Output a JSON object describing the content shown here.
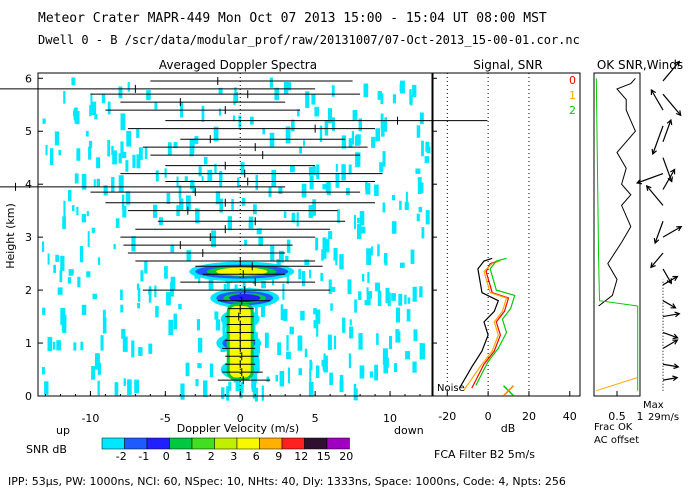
{
  "header": {
    "line1": "Meteor Crater  MAPR-449  Mon Oct 07 2013 15:00 - 15:04 UT 08:00 MST",
    "line2": "Dwell  0 -  B   /scr/data/modular_prof/raw/20131007/07-Oct-2013_15-00-01.cor.nc"
  },
  "footer": {
    "params": "IPP: 53µs, PW: 1000ns, NCI: 60, NSpec: 10, NHts: 40, Dly: 1333ns, Space: 1000ns, Code: 4, Npts: 256",
    "fca": "FCA Filter B2  5m/s"
  },
  "colorbar": {
    "label": "SNR dB",
    "ticks": [
      "-2",
      "-1",
      "0",
      "1",
      "2",
      "3",
      "6",
      "9",
      "12",
      "15",
      "20"
    ],
    "colors": [
      "#00e8ff",
      "#1e5aff",
      "#2020ff",
      "#00c840",
      "#40e020",
      "#c0f000",
      "#f8f800",
      "#ffb000",
      "#ff2020",
      "#301030",
      "#a000c0"
    ]
  },
  "chart_data": [
    {
      "type": "heatmap",
      "title": "Averaged Doppler Spectra",
      "xlabel": "Doppler Velocity (m/s)",
      "ylabel": "Height (km)",
      "xlim": [
        -13.5,
        12.8
      ],
      "ylim": [
        0,
        6.1
      ],
      "xticks": [
        "-10",
        "-5",
        "0",
        "5",
        "10"
      ],
      "yticks": [
        "0",
        "1",
        "2",
        "3",
        "4",
        "5",
        "6"
      ],
      "x_left_label": "up",
      "x_right_label": "down",
      "echo_layers": [
        {
          "height_km": 2.35,
          "vmin": -3.0,
          "vmax": 3.2,
          "peak_color": "#f8f800"
        },
        {
          "height_km": 1.85,
          "vmin": -1.6,
          "vmax": 2.2,
          "peak_color": "#2020ff"
        },
        {
          "height_km": 1.45,
          "vmin": -0.9,
          "vmax": 0.9,
          "peak_color": "#f8f800"
        },
        {
          "height_km": 1.0,
          "vmin": -1.2,
          "vmax": 1.0,
          "peak_color": "#f8f800"
        },
        {
          "height_km": 0.5,
          "vmin": -0.9,
          "vmax": 0.9,
          "peak_color": "#f8f800"
        }
      ],
      "error_bars": [
        {
          "h": 0.3,
          "v": 0.2,
          "lo": -1.5,
          "hi": 2.0
        },
        {
          "h": 0.45,
          "v": 0.1,
          "lo": -1.2,
          "hi": 1.5
        },
        {
          "h": 0.6,
          "v": 0.0,
          "lo": -1.0,
          "hi": 1.0
        },
        {
          "h": 0.75,
          "v": 0.1,
          "lo": -1.0,
          "hi": 1.2
        },
        {
          "h": 0.9,
          "v": 0.0,
          "lo": -1.2,
          "hi": 1.0
        },
        {
          "h": 1.05,
          "v": 0.0,
          "lo": -1.0,
          "hi": 1.0
        },
        {
          "h": 1.2,
          "v": 0.0,
          "lo": -0.9,
          "hi": 0.9
        },
        {
          "h": 1.35,
          "v": 0.0,
          "lo": -0.9,
          "hi": 0.8
        },
        {
          "h": 1.5,
          "v": -0.1,
          "lo": -1.0,
          "hi": 0.9
        },
        {
          "h": 1.65,
          "v": 0.0,
          "lo": -0.8,
          "hi": 0.9
        },
        {
          "h": 1.8,
          "v": 0.1,
          "lo": -1.5,
          "hi": 2.0
        },
        {
          "h": 2.0,
          "v": 0.3,
          "lo": -6.5,
          "hi": 6.0
        },
        {
          "h": 2.15,
          "v": 1.0,
          "lo": -4.0,
          "hi": 5.0
        },
        {
          "h": 2.3,
          "v": 0.2,
          "lo": -2.5,
          "hi": 3.0
        },
        {
          "h": 2.45,
          "v": 0.8,
          "lo": -3.0,
          "hi": 5.5
        },
        {
          "h": 2.55,
          "v": 0.0,
          "lo": -7.0,
          "hi": 5.0
        },
        {
          "h": 2.7,
          "v": -2.5,
          "lo": -7.5,
          "hi": 3.0
        },
        {
          "h": 2.85,
          "v": -4.0,
          "lo": -7.8,
          "hi": 3.5
        },
        {
          "h": 3.0,
          "v": -2.0,
          "lo": -8.0,
          "hi": 5.0
        },
        {
          "h": 3.15,
          "v": -1.0,
          "lo": -7.0,
          "hi": 6.0
        },
        {
          "h": 3.3,
          "v": 1.0,
          "lo": -5.5,
          "hi": 7.0
        },
        {
          "h": 3.5,
          "v": -3.5,
          "lo": -7.5,
          "hi": 6.5
        },
        {
          "h": 3.65,
          "v": -1.0,
          "lo": -9.0,
          "hi": 9.0
        },
        {
          "h": 3.85,
          "v": -3.0,
          "lo": -10.0,
          "hi": 8.0
        },
        {
          "h": 3.95,
          "v": -15.0,
          "lo": -16.5,
          "hi": 3.0
        },
        {
          "h": 4.05,
          "v": 0.5,
          "lo": -5.0,
          "hi": 9.0
        },
        {
          "h": 4.2,
          "v": 0.3,
          "lo": -8.0,
          "hi": 9.5
        },
        {
          "h": 4.35,
          "v": -1.0,
          "lo": -5.0,
          "hi": 5.0
        },
        {
          "h": 4.55,
          "v": 1.5,
          "lo": -6.0,
          "hi": 8.0
        },
        {
          "h": 4.7,
          "v": 1.0,
          "lo": -6.5,
          "hi": 8.5
        },
        {
          "h": 4.85,
          "v": -2.0,
          "lo": -4.0,
          "hi": 7.0
        },
        {
          "h": 5.05,
          "v": 5.0,
          "lo": -7.5,
          "hi": 9.0
        },
        {
          "h": 5.2,
          "v": 10.5,
          "lo": -5.0,
          "hi": 16.5
        },
        {
          "h": 5.4,
          "v": -1.0,
          "lo": -9.0,
          "hi": 4.0
        },
        {
          "h": 5.55,
          "v": -4.0,
          "lo": -8.0,
          "hi": 3.0
        },
        {
          "h": 5.7,
          "v": 0.5,
          "lo": -10.0,
          "hi": 8.0
        },
        {
          "h": 5.8,
          "v": -7.0,
          "lo": -16.5,
          "hi": 5.0
        },
        {
          "h": 5.95,
          "v": -1.5,
          "lo": -6.0,
          "hi": 7.5
        }
      ]
    },
    {
      "type": "line",
      "title": "Signal, SNR",
      "xlabel": "dB",
      "xlim": [
        -27,
        45
      ],
      "ylim": [
        0,
        6.1
      ],
      "xticks": [
        "-20",
        "0",
        "20",
        "40"
      ],
      "noise_label": "Noise",
      "series": [
        {
          "name": "0",
          "color": "#ff0000",
          "x": [
            -8,
            -2,
            3,
            6,
            4,
            8,
            10,
            2,
            -1,
            1,
            5
          ],
          "y": [
            0.15,
            0.6,
            0.85,
            1.15,
            1.4,
            1.6,
            1.85,
            1.95,
            2.35,
            2.5,
            2.55
          ]
        },
        {
          "name": "1",
          "color": "#ffaa00",
          "x": [
            -12,
            -4,
            2,
            5,
            3,
            7,
            9,
            1,
            -2,
            2,
            6
          ],
          "y": [
            0.1,
            0.55,
            0.85,
            1.15,
            1.4,
            1.6,
            1.85,
            1.95,
            2.35,
            2.5,
            2.55
          ]
        },
        {
          "name": "2",
          "color": "#00cc00",
          "x": [
            -6,
            0,
            5,
            9,
            7,
            11,
            13,
            4,
            1,
            4,
            9
          ],
          "y": [
            0.2,
            0.65,
            0.9,
            1.2,
            1.45,
            1.65,
            1.9,
            2.0,
            2.4,
            2.55,
            2.6
          ]
        },
        {
          "name": "signal",
          "color": "#000000",
          "x": [
            -14,
            -8,
            -3,
            0,
            -2,
            3,
            5,
            -3,
            -5,
            -2,
            2
          ],
          "y": [
            0.15,
            0.55,
            0.85,
            1.15,
            1.4,
            1.6,
            1.8,
            1.95,
            2.4,
            2.55,
            2.6
          ]
        }
      ]
    },
    {
      "type": "line",
      "title": "OK  SNR,Winds",
      "xlabel_left": "Frac OK",
      "xlabel_left2": "AC offset",
      "xlabel_right": "Max",
      "xlabel_right2": "29m/s",
      "xticks": [
        "0.5",
        "1"
      ],
      "ylim": [
        0,
        6.1
      ],
      "series": [
        {
          "name": "frac_ok",
          "color": "#000000",
          "x": [
            0.1,
            0.4,
            0.5,
            0.3,
            0.6,
            0.8,
            0.6,
            0.8,
            0.6,
            0.7,
            0.5,
            0.9,
            0.8,
            0.7,
            0.7,
            0.5,
            0.8,
            0.9
          ],
          "y": [
            1.7,
            1.9,
            2.2,
            2.5,
            2.9,
            3.2,
            3.6,
            3.8,
            4.0,
            4.3,
            4.6,
            5.0,
            5.2,
            5.4,
            5.6,
            5.8,
            5.9,
            6.0
          ]
        },
        {
          "name": "snr_ok",
          "color": "#00cc00",
          "x": [
            0.05,
            0.1,
            0.12,
            0.95,
            0.95
          ],
          "y": [
            6.0,
            2.6,
            1.8,
            1.7,
            0.1
          ]
        },
        {
          "name": "ac_offset",
          "color": "#ffaa00",
          "x": [
            0.05,
            0.95
          ],
          "y": [
            0.1,
            0.35
          ]
        }
      ],
      "wind_barbs": [
        {
          "h": 0.3,
          "dir": 80,
          "spd": 0.2
        },
        {
          "h": 0.6,
          "dir": 100,
          "spd": 0.25
        },
        {
          "h": 0.9,
          "dir": 60,
          "spd": 0.3
        },
        {
          "h": 1.2,
          "dir": 110,
          "spd": 0.25
        },
        {
          "h": 1.5,
          "dir": 80,
          "spd": 0.3
        },
        {
          "h": 1.8,
          "dir": 120,
          "spd": 0.2
        },
        {
          "h": 2.1,
          "dir": 60,
          "spd": 0.3
        },
        {
          "h": 2.4,
          "dir": 150,
          "spd": 0.3
        },
        {
          "h": 2.7,
          "dir": 220,
          "spd": 0.4
        },
        {
          "h": 3.0,
          "dir": 60,
          "spd": 0.5
        },
        {
          "h": 3.3,
          "dir": 200,
          "spd": 0.6
        },
        {
          "h": 3.6,
          "dir": 320,
          "spd": 0.7
        },
        {
          "h": 3.9,
          "dir": 30,
          "spd": 0.6
        },
        {
          "h": 4.2,
          "dir": 250,
          "spd": 0.8
        },
        {
          "h": 4.5,
          "dir": 160,
          "spd": 0.7
        },
        {
          "h": 4.8,
          "dir": 20,
          "spd": 0.6
        },
        {
          "h": 5.1,
          "dir": 200,
          "spd": 0.9
        },
        {
          "h": 5.4,
          "dir": 330,
          "spd": 0.6
        },
        {
          "h": 5.7,
          "dir": 140,
          "spd": 0.8
        },
        {
          "h": 5.95,
          "dir": 40,
          "spd": 0.7
        }
      ]
    }
  ]
}
